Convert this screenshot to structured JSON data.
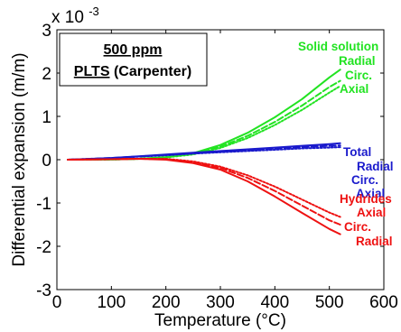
{
  "chart_data": {
    "type": "line",
    "xlabel": "Temperature (°C)",
    "ylabel": "Differential expansion (m/m)",
    "y_exponent_text": "x 10",
    "y_exponent_power": "-3",
    "xlim": [
      0,
      600
    ],
    "ylim": [
      -3,
      3
    ],
    "x_ticks": [
      0,
      100,
      200,
      300,
      400,
      500,
      600
    ],
    "y_ticks": [
      -3,
      -2,
      -1,
      0,
      1,
      2,
      3
    ],
    "x_tick_labels": [
      "0",
      "100",
      "200",
      "300",
      "400",
      "500",
      "600"
    ],
    "y_tick_labels": [
      "-3",
      "-2",
      "-1",
      "0",
      "1",
      "2",
      "3"
    ],
    "grid": false,
    "legend_box": {
      "line1": "500 ppm",
      "line2_underlined": "PLTS",
      "line2_rest": " (Carpenter)"
    },
    "colors": {
      "solid_solution": "#22e322",
      "total": "#1a1acc",
      "hydrides": "#ee1111"
    },
    "groups": [
      {
        "name": "Solid solution",
        "color": "#22e322",
        "label_position": "above",
        "series": [
          {
            "name": "Radial",
            "style": "solid",
            "x": [
              20,
              100,
              150,
              200,
              250,
              300,
              350,
              400,
              450,
              500,
              520
            ],
            "y": [
              0,
              0.005,
              0.02,
              0.06,
              0.15,
              0.34,
              0.62,
              0.98,
              1.4,
              1.9,
              2.08
            ]
          },
          {
            "name": "Circ.",
            "style": "dashed",
            "x": [
              20,
              100,
              150,
              200,
              250,
              300,
              350,
              400,
              450,
              500,
              520
            ],
            "y": [
              0,
              0.005,
              0.02,
              0.055,
              0.14,
              0.3,
              0.55,
              0.87,
              1.25,
              1.68,
              1.82
            ]
          },
          {
            "name": "Axial",
            "style": "dotted",
            "x": [
              20,
              100,
              150,
              200,
              250,
              300,
              350,
              400,
              450,
              500,
              520
            ],
            "y": [
              0,
              0.004,
              0.018,
              0.05,
              0.12,
              0.27,
              0.5,
              0.8,
              1.15,
              1.55,
              1.7
            ]
          }
        ]
      },
      {
        "name": "Total",
        "color": "#1a1acc",
        "label_position": "above",
        "series": [
          {
            "name": "Radial",
            "style": "solid",
            "x": [
              20,
              100,
              150,
              200,
              250,
              300,
              350,
              400,
              450,
              500,
              520
            ],
            "y": [
              0,
              0.04,
              0.08,
              0.12,
              0.16,
              0.2,
              0.24,
              0.28,
              0.32,
              0.36,
              0.38
            ]
          },
          {
            "name": "Circ.",
            "style": "dashed",
            "x": [
              20,
              100,
              150,
              200,
              250,
              300,
              350,
              400,
              450,
              500,
              520
            ],
            "y": [
              0,
              0.04,
              0.075,
              0.11,
              0.15,
              0.185,
              0.22,
              0.26,
              0.29,
              0.32,
              0.33
            ]
          },
          {
            "name": "Axial",
            "style": "dotted",
            "x": [
              20,
              100,
              150,
              200,
              250,
              300,
              350,
              400,
              450,
              500,
              520
            ],
            "y": [
              0,
              0.035,
              0.07,
              0.1,
              0.14,
              0.17,
              0.2,
              0.23,
              0.26,
              0.28,
              0.29
            ]
          }
        ]
      },
      {
        "name": "Hydrides",
        "color": "#ee1111",
        "label_position": "above",
        "series": [
          {
            "name": "Axial",
            "style": "dotted",
            "x": [
              20,
              100,
              150,
              200,
              250,
              300,
              350,
              400,
              450,
              500,
              520
            ],
            "y": [
              0,
              0.01,
              0.02,
              0.02,
              -0.04,
              -0.16,
              -0.36,
              -0.62,
              -0.92,
              -1.22,
              -1.32
            ]
          },
          {
            "name": "Circ.",
            "style": "dashed",
            "x": [
              20,
              100,
              150,
              200,
              250,
              300,
              350,
              400,
              450,
              500,
              520
            ],
            "y": [
              0,
              0.01,
              0.02,
              0.01,
              -0.06,
              -0.19,
              -0.42,
              -0.72,
              -1.06,
              -1.4,
              -1.5
            ]
          },
          {
            "name": "Radial",
            "style": "solid",
            "x": [
              20,
              100,
              150,
              200,
              250,
              300,
              350,
              400,
              450,
              500,
              520
            ],
            "y": [
              0,
              0.01,
              0.02,
              0.0,
              -0.08,
              -0.23,
              -0.5,
              -0.85,
              -1.23,
              -1.6,
              -1.72
            ]
          }
        ]
      }
    ]
  }
}
